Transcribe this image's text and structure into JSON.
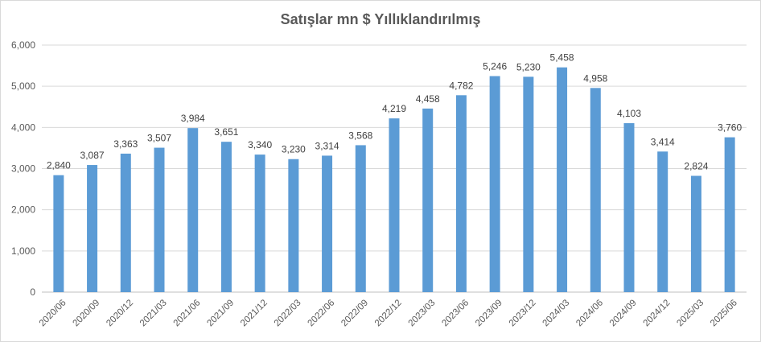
{
  "chart_data": {
    "type": "bar",
    "title": "Satışlar mn $ Yıllıklandırılmış",
    "xlabel": "",
    "ylabel": "",
    "categories": [
      "2020/06",
      "2020/09",
      "2020/12",
      "2021/03",
      "2021/06",
      "2021/09",
      "2021/12",
      "2022/03",
      "2022/06",
      "2022/09",
      "2022/12",
      "2023/03",
      "2023/06",
      "2023/09",
      "2023/12",
      "2024/03",
      "2024/06",
      "2024/09",
      "2024/12",
      "2025/03",
      "2025/06"
    ],
    "values": [
      2840,
      3087,
      3363,
      3507,
      3984,
      3651,
      3340,
      3230,
      3314,
      3568,
      4219,
      4458,
      4782,
      5246,
      5230,
      5458,
      4958,
      4103,
      3414,
      2824,
      3760
    ],
    "value_labels": [
      "2,840",
      "3,087",
      "3,363",
      "3,507",
      "3,984",
      "3,651",
      "3,340",
      "3,230",
      "3,314",
      "3,568",
      "4,219",
      "4,458",
      "4,782",
      "5,246",
      "5,230",
      "5,458",
      "4,958",
      "4,103",
      "3,414",
      "2,824",
      "3,760"
    ],
    "ylim": [
      0,
      6000
    ],
    "yticks": [
      "0",
      "1,000",
      "2,000",
      "3,000",
      "4,000",
      "5,000",
      "6,000"
    ],
    "grid": true,
    "legend": "none",
    "colors": {
      "bar": "#5b9bd5",
      "grid": "#d9d9d9",
      "axis": "#bfbfbf",
      "text": "#595959"
    }
  }
}
